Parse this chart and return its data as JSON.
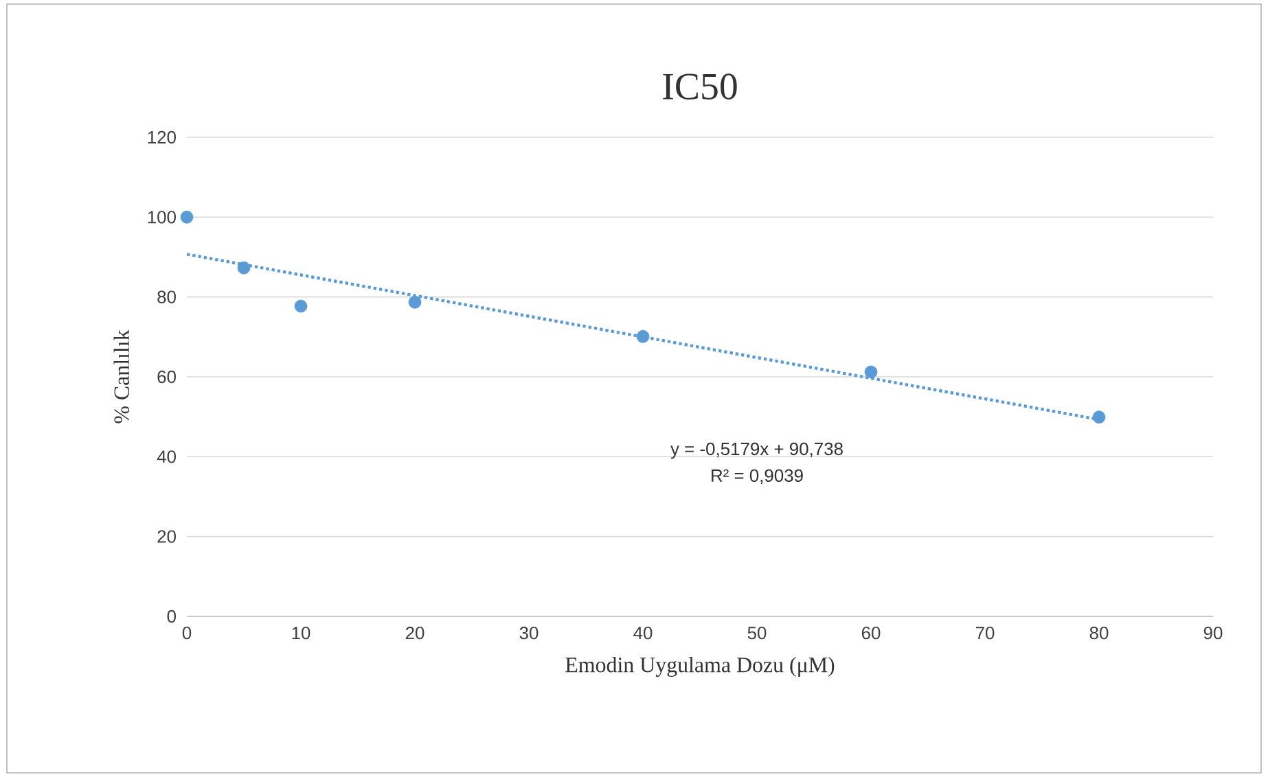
{
  "chart_data": {
    "type": "scatter",
    "title": "IC50",
    "xlabel": "Emodin Uygulama Dozu (μM)",
    "ylabel": "% Canlılık",
    "xlim": [
      0,
      90
    ],
    "xticks": [
      0,
      10,
      20,
      30,
      40,
      50,
      60,
      70,
      80,
      90
    ],
    "ylim": [
      0,
      120
    ],
    "yticks": [
      0,
      20,
      40,
      60,
      80,
      100,
      120
    ],
    "grid": "y",
    "series": [
      {
        "color": "#5b9bd5",
        "marker": "circle",
        "x": [
          0,
          5,
          10,
          20,
          40,
          60,
          80
        ],
        "values": [
          100,
          87.3,
          77.7,
          78.7,
          70.1,
          61.2,
          49.9
        ]
      },
      {
        "type": "line",
        "color": "#5b9bd5",
        "line_style": "dotted",
        "marker": "none",
        "x": [
          0,
          80
        ],
        "values": [
          90.7,
          49.3
        ]
      }
    ],
    "annotations": [
      "y = -0,5179x + 90,738",
      "R² = 0,9039"
    ]
  }
}
